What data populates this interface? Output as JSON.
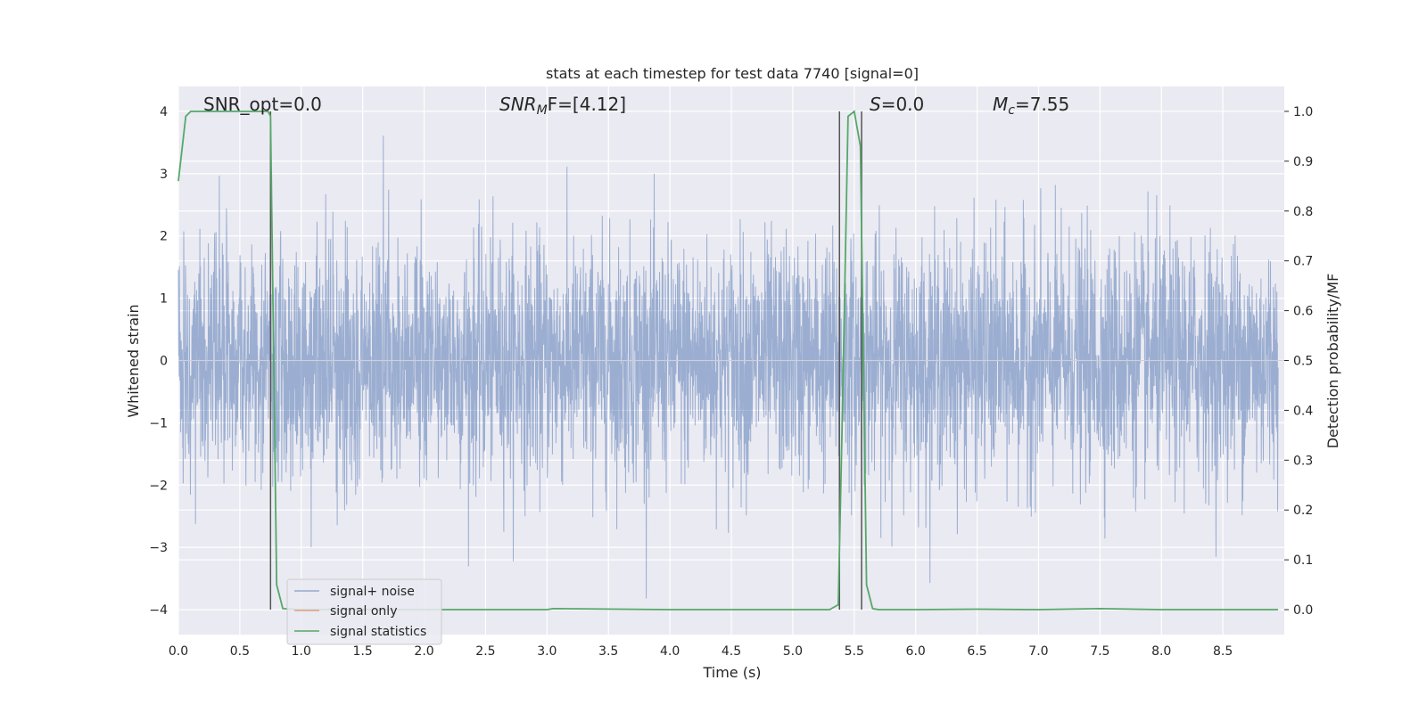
{
  "chart_data": {
    "type": "line",
    "title": "stats at each timestep for test data 7740 [signal=0]",
    "xlabel": "Time (s)",
    "ylabel": "Whitened strain",
    "ylabel_right": "Detection probability/MF",
    "xlim": [
      0.0,
      9.0
    ],
    "ylim": [
      -4.4,
      4.4
    ],
    "ylim_right": [
      -0.05,
      1.05
    ],
    "x_ticks": [
      "0.0",
      "0.5",
      "1.0",
      "1.5",
      "2.0",
      "2.5",
      "3.0",
      "3.5",
      "4.0",
      "4.5",
      "5.0",
      "5.5",
      "6.0",
      "6.5",
      "7.0",
      "7.5",
      "8.0",
      "8.5"
    ],
    "y_ticks": [
      "4",
      "3",
      "2",
      "1",
      "0",
      "−1",
      "−2",
      "−3",
      "−4"
    ],
    "y_ticks_right": [
      "1.0",
      "0.9",
      "0.8",
      "0.7",
      "0.6",
      "0.5",
      "0.4",
      "0.3",
      "0.2",
      "0.1",
      "0.0"
    ],
    "grid": true,
    "legend_position": "lower-left",
    "annotations": {
      "snr_opt": "SNR_opt=0.0",
      "snr_mf_main": "SNR",
      "snr_mf_sub": "M",
      "snr_mf_rest": "F=[4.12]",
      "s_italic": "S",
      "s_rest": "=0.0",
      "mc_main": "M",
      "mc_sub": "c",
      "mc_rest": "=7.55"
    },
    "vertical_lines_x": [
      0.75,
      5.38,
      5.56
    ],
    "series": [
      {
        "name": "signal+ noise",
        "color": "#4c72b0",
        "axis": "left",
        "description": "whitened strain noise, roughly Gaussian, sample amplitude range about -3.9 to 4.0",
        "envelope": {
          "typical_abs": 1.6,
          "max": 4.0,
          "min": -3.95
        }
      },
      {
        "name": "signal only",
        "color": "#dd8452",
        "axis": "left",
        "x": [],
        "y": []
      },
      {
        "name": "signal statistics",
        "color": "#55a868",
        "axis": "right",
        "x": [
          0.0,
          0.06,
          0.1,
          0.15,
          0.3,
          0.5,
          0.6,
          0.7,
          0.73,
          0.75,
          0.8,
          0.85,
          1.0,
          2.0,
          3.0,
          3.05,
          4.0,
          5.0,
          5.3,
          5.37,
          5.4,
          5.45,
          5.5,
          5.55,
          5.6,
          5.65,
          5.7,
          6.0,
          6.5,
          7.0,
          7.5,
          8.0,
          8.5,
          8.95
        ],
        "y": [
          0.86,
          0.99,
          1.0,
          1.0,
          1.0,
          1.0,
          1.0,
          1.0,
          1.0,
          0.99,
          0.05,
          0.002,
          0.0,
          0.0,
          0.0,
          0.002,
          0.0,
          0.0,
          0.0,
          0.01,
          0.35,
          0.99,
          1.0,
          0.93,
          0.05,
          0.002,
          0.0,
          0.0,
          0.001,
          0.0,
          0.002,
          0.0,
          0.0,
          0.0
        ]
      }
    ]
  }
}
